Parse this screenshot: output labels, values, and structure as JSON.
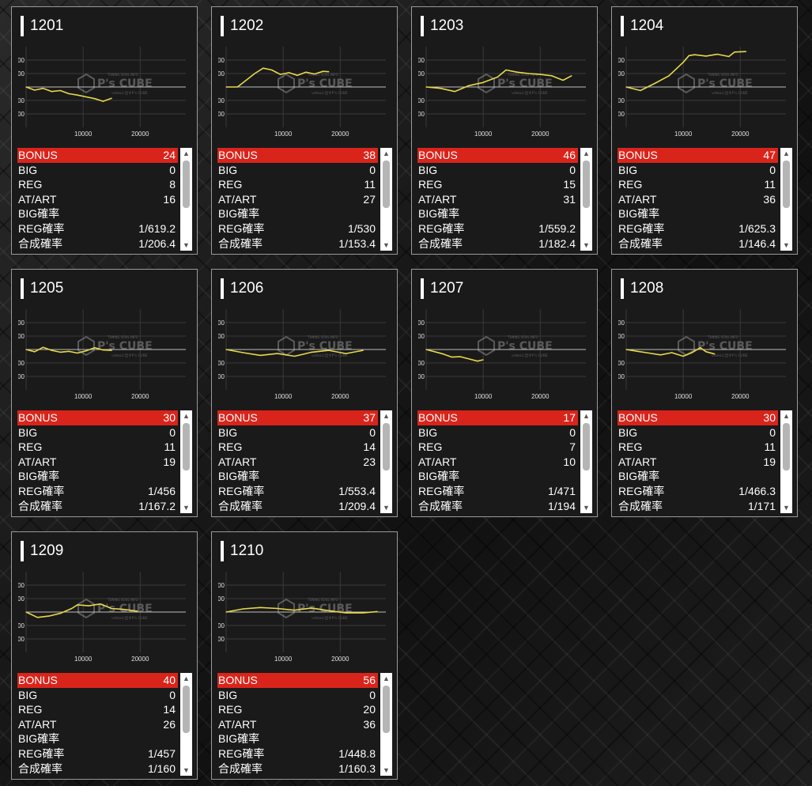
{
  "chart_axis": {
    "y_ticks": [
      "6000",
      "3000",
      "-3000",
      "-6000"
    ],
    "x_ticks": [
      "10000",
      "20000"
    ]
  },
  "watermark": {
    "brand": "P's CUBE",
    "small_top": "TUNING SOUL INFO",
    "small_bottom": "videoに出すP's CUBE"
  },
  "colors": {
    "bonus_bg": "#d9241b",
    "line": "#e8d84a",
    "panel_bg": "#1a1a1a"
  },
  "labels": {
    "bonus": "BONUS",
    "big": "BIG",
    "reg": "REG",
    "at": "AT/ART",
    "big_rate": "BIG確率",
    "reg_rate": "REG確率",
    "total_rate": "合成確率"
  },
  "machines": [
    {
      "id": "1201",
      "bonus": "24",
      "big": "0",
      "reg": "8",
      "at": "16",
      "big_rate": "",
      "reg_rate": "1/619.2",
      "total_rate": "1/206.4",
      "chart_data": {
        "type": "line",
        "x": [
          0,
          1500,
          3000,
          4500,
          6000,
          7500,
          9000,
          10500,
          12000,
          13500,
          15000
        ],
        "y": [
          0,
          -700,
          -300,
          -1000,
          -800,
          -1500,
          -1800,
          -2200,
          -2600,
          -3200,
          -2500
        ],
        "xlim": [
          0,
          28000
        ],
        "ylim": [
          -9000,
          9000
        ]
      }
    },
    {
      "id": "1202",
      "bonus": "38",
      "big": "0",
      "reg": "11",
      "at": "27",
      "big_rate": "",
      "reg_rate": "1/530",
      "total_rate": "1/153.4",
      "chart_data": {
        "type": "line",
        "x": [
          0,
          2000,
          3500,
          5000,
          6500,
          8000,
          9500,
          11000,
          12500,
          14000,
          15500,
          17000,
          18000
        ],
        "y": [
          0,
          0,
          1500,
          3000,
          4200,
          3800,
          2800,
          3200,
          2600,
          3300,
          2900,
          3500,
          3400
        ],
        "xlim": [
          0,
          28000
        ],
        "ylim": [
          -9000,
          9000
        ]
      }
    },
    {
      "id": "1203",
      "bonus": "46",
      "big": "0",
      "reg": "15",
      "at": "31",
      "big_rate": "",
      "reg_rate": "1/559.2",
      "total_rate": "1/182.4",
      "chart_data": {
        "type": "line",
        "x": [
          0,
          2500,
          5000,
          7500,
          10000,
          12500,
          14000,
          16000,
          18000,
          20000,
          22000,
          24000,
          25500
        ],
        "y": [
          0,
          -300,
          -1000,
          300,
          1000,
          2200,
          3800,
          3300,
          3000,
          2800,
          2500,
          1500,
          2500
        ],
        "xlim": [
          0,
          28000
        ],
        "ylim": [
          -9000,
          9000
        ]
      }
    },
    {
      "id": "1204",
      "bonus": "47",
      "big": "0",
      "reg": "11",
      "at": "36",
      "big_rate": "",
      "reg_rate": "1/625.3",
      "total_rate": "1/146.4",
      "chart_data": {
        "type": "line",
        "x": [
          0,
          2500,
          5000,
          7500,
          10000,
          11000,
          12000,
          14000,
          16000,
          18000,
          19000,
          21000
        ],
        "y": [
          0,
          -800,
          800,
          2500,
          5500,
          7000,
          7200,
          6900,
          7300,
          6800,
          7800,
          7900
        ],
        "xlim": [
          0,
          28000
        ],
        "ylim": [
          -9000,
          9000
        ]
      }
    },
    {
      "id": "1205",
      "bonus": "30",
      "big": "0",
      "reg": "11",
      "at": "19",
      "big_rate": "",
      "reg_rate": "1/456",
      "total_rate": "1/167.2",
      "chart_data": {
        "type": "line",
        "x": [
          0,
          1500,
          3000,
          4500,
          6000,
          7500,
          9000,
          10500,
          12000,
          13500,
          15000
        ],
        "y": [
          0,
          -500,
          500,
          -200,
          -600,
          -400,
          -800,
          -300,
          400,
          -100,
          -200
        ],
        "xlim": [
          0,
          28000
        ],
        "ylim": [
          -9000,
          9000
        ]
      }
    },
    {
      "id": "1206",
      "bonus": "37",
      "big": "0",
      "reg": "14",
      "at": "23",
      "big_rate": "",
      "reg_rate": "1/553.4",
      "total_rate": "1/209.4",
      "chart_data": {
        "type": "line",
        "x": [
          0,
          3000,
          6000,
          9000,
          12000,
          15000,
          18000,
          21000,
          24000
        ],
        "y": [
          0,
          -700,
          -1300,
          -900,
          -1500,
          -600,
          -200,
          -900,
          -200
        ],
        "xlim": [
          0,
          28000
        ],
        "ylim": [
          -9000,
          9000
        ]
      }
    },
    {
      "id": "1207",
      "bonus": "17",
      "big": "0",
      "reg": "7",
      "at": "10",
      "big_rate": "",
      "reg_rate": "1/471",
      "total_rate": "1/194",
      "chart_data": {
        "type": "line",
        "x": [
          0,
          1500,
          3000,
          4500,
          6000,
          7500,
          9000,
          10000
        ],
        "y": [
          0,
          -500,
          -1000,
          -1700,
          -1600,
          -2100,
          -2600,
          -2300
        ],
        "xlim": [
          0,
          28000
        ],
        "ylim": [
          -9000,
          9000
        ]
      }
    },
    {
      "id": "1208",
      "bonus": "30",
      "big": "0",
      "reg": "11",
      "at": "19",
      "big_rate": "",
      "reg_rate": "1/466.3",
      "total_rate": "1/171",
      "chart_data": {
        "type": "line",
        "x": [
          0,
          2000,
          4000,
          6000,
          8000,
          10000,
          11500,
          13000,
          14000,
          15500
        ],
        "y": [
          0,
          -400,
          -800,
          -1200,
          -700,
          -1500,
          -700,
          400,
          -500,
          -1000
        ],
        "xlim": [
          0,
          28000
        ],
        "ylim": [
          -9000,
          9000
        ]
      }
    },
    {
      "id": "1209",
      "bonus": "40",
      "big": "0",
      "reg": "14",
      "at": "26",
      "big_rate": "",
      "reg_rate": "1/457",
      "total_rate": "1/160",
      "chart_data": {
        "type": "line",
        "x": [
          0,
          2000,
          4000,
          6000,
          8000,
          9000,
          11000,
          13000,
          15000,
          17000,
          19500
        ],
        "y": [
          0,
          -1200,
          -900,
          -300,
          800,
          1600,
          1400,
          1800,
          800,
          600,
          200
        ],
        "xlim": [
          0,
          28000
        ],
        "ylim": [
          -9000,
          9000
        ]
      }
    },
    {
      "id": "1210",
      "bonus": "56",
      "big": "0",
      "reg": "20",
      "at": "36",
      "big_rate": "",
      "reg_rate": "1/448.8",
      "total_rate": "1/160.3",
      "chart_data": {
        "type": "line",
        "x": [
          0,
          3000,
          6000,
          9000,
          12000,
          15000,
          18000,
          21000,
          24000,
          26500
        ],
        "y": [
          0,
          700,
          1000,
          800,
          400,
          900,
          300,
          -200,
          -200,
          100
        ],
        "xlim": [
          0,
          28000
        ],
        "ylim": [
          -9000,
          9000
        ]
      }
    }
  ]
}
